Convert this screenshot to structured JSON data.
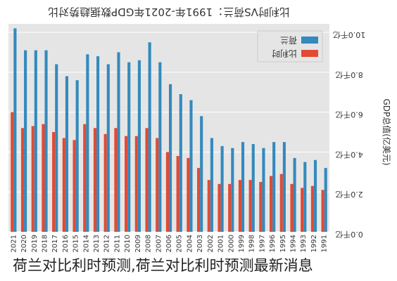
{
  "chart_data": {
    "type": "bar",
    "title": "比利时VS荷兰：1991年-2021年GDP数据趋势对比",
    "ylabel": "GDP总值(亿美元)",
    "ylim": [
      0,
      10
    ],
    "yticks": [
      "0.0千亿",
      "2.0千亿",
      "4.0千亿",
      "6.0千亿",
      "8.0千亿",
      "10.0千亿"
    ],
    "grid": true,
    "legend_position": "top-right",
    "categories": [
      "1991",
      "1992",
      "1993",
      "1994",
      "1995",
      "1996",
      "1997",
      "1998",
      "1999",
      "2000",
      "2001",
      "2002",
      "2003",
      "2004",
      "2005",
      "2006",
      "2007",
      "2008",
      "2009",
      "2010",
      "2011",
      "2012",
      "2013",
      "2014",
      "2015",
      "2016",
      "2017",
      "2018",
      "2019",
      "2020",
      "2021"
    ],
    "series": [
      {
        "name": "比利时",
        "color": "#e24a33",
        "values": [
          2.1,
          2.3,
          2.2,
          2.4,
          2.9,
          2.8,
          2.5,
          2.6,
          2.6,
          2.4,
          2.4,
          2.6,
          3.2,
          3.7,
          3.8,
          4.0,
          4.7,
          5.2,
          4.8,
          4.8,
          5.2,
          4.9,
          5.2,
          5.4,
          4.6,
          4.7,
          5.0,
          5.4,
          5.3,
          5.2,
          6.0
        ]
      },
      {
        "name": "荷兰",
        "color": "#348abd",
        "values": [
          3.2,
          3.6,
          3.5,
          3.7,
          4.5,
          4.5,
          4.2,
          4.4,
          4.5,
          4.2,
          4.3,
          4.7,
          5.8,
          6.6,
          6.9,
          7.4,
          8.5,
          9.5,
          8.6,
          8.5,
          9.0,
          8.4,
          8.8,
          8.9,
          7.6,
          7.8,
          8.4,
          9.1,
          9.1,
          9.1,
          10.2
        ]
      }
    ]
  },
  "caption": "荷兰对比利时预测,荷兰对比利时预测最新消息"
}
